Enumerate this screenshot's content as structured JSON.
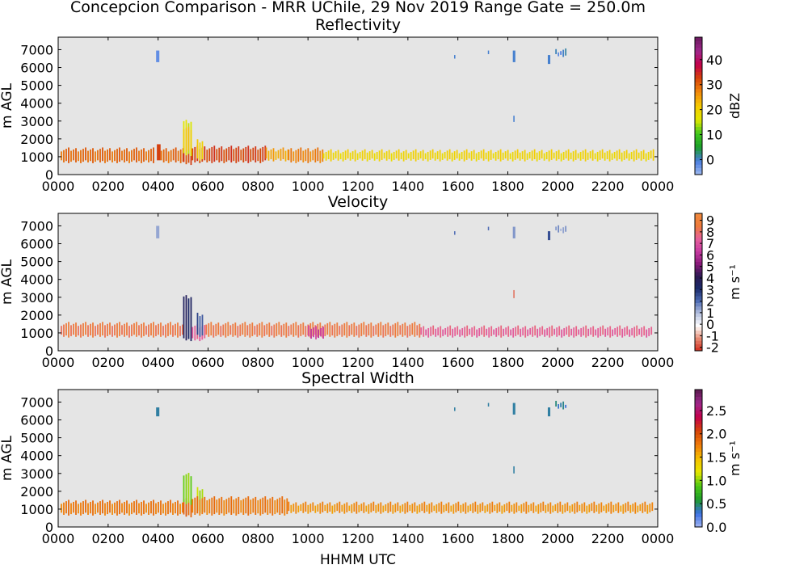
{
  "figure": {
    "suptitle": "Concepcion Comparison - MRR UChile, 29 Nov 2019 Range Gate = 250.0m",
    "xlabel": "HHMM UTC"
  },
  "colors": {
    "background": "#ffffff",
    "axes_face": "#e5e5e5",
    "reflectivity_cmap": [
      "#9db8ee",
      "#4a7de0",
      "#1a9e2a",
      "#3ec81c",
      "#e2e800",
      "#f5cb00",
      "#f28a0c",
      "#d64508",
      "#c4004a",
      "#a0288c",
      "#6a1a5e"
    ],
    "velocity_cmap": [
      "#d12a1c",
      "#e78c74",
      "#ffffff",
      "#b7c2e0",
      "#4e6cb4",
      "#1a2a6a",
      "#2d1a52",
      "#8a1a7a",
      "#c93ca2",
      "#e6609a",
      "#ee7a3c",
      "#f28a3c"
    ],
    "width_cmap": [
      "#a4b6f0",
      "#3a6fe4",
      "#1e9c2a",
      "#4cc814",
      "#e6e800",
      "#f5c000",
      "#ef7a0a",
      "#d64508",
      "#c4004a",
      "#a0288c",
      "#5a1a4e"
    ]
  },
  "chart_data": [
    {
      "type": "heatmap",
      "title": "Reflectivity",
      "ylabel": "m AGL",
      "x_tick_labels": [
        "0000",
        "0200",
        "0400",
        "0600",
        "0800",
        "1000",
        "1200",
        "1400",
        "1600",
        "1800",
        "2000",
        "2200",
        "0000"
      ],
      "xlim_hours": [
        0,
        24
      ],
      "y_ticks": [
        0,
        1000,
        2000,
        3000,
        4000,
        5000,
        6000,
        7000
      ],
      "ylim": [
        0,
        7700
      ],
      "colorbar": {
        "label": "dBZ",
        "range": [
          -6,
          49
        ],
        "ticks": [
          "0",
          "10",
          "20",
          "30",
          "40"
        ],
        "tick_values": [
          0,
          10,
          20,
          30,
          40
        ]
      },
      "segments": [
        {
          "t0": 0.1,
          "t1": 3.8,
          "h0": 800,
          "h1": 1400,
          "value": 30
        },
        {
          "t0": 3.95,
          "t1": 4.1,
          "h0": 800,
          "h1": 1700,
          "value": 33
        },
        {
          "t0": 4.1,
          "t1": 5.0,
          "h0": 800,
          "h1": 1400,
          "value": 30
        },
        {
          "t0": 5.0,
          "t1": 5.35,
          "h0": 700,
          "h1": 1500,
          "value": 33
        },
        {
          "t0": 5.35,
          "t1": 8.3,
          "h0": 800,
          "h1": 1500,
          "value": 33
        },
        {
          "t0": 8.3,
          "t1": 9.2,
          "h0": 900,
          "h1": 1400,
          "value": 25
        },
        {
          "t0": 9.2,
          "t1": 10.6,
          "h0": 800,
          "h1": 1400,
          "value": 28
        },
        {
          "t0": 10.6,
          "t1": 23.8,
          "h0": 900,
          "h1": 1300,
          "value": 20
        },
        {
          "t0": 5.0,
          "t1": 5.35,
          "h0": 1200,
          "h1": 2950,
          "value": 16
        },
        {
          "t0": 5.0,
          "t1": 5.35,
          "h0": 1400,
          "h1": 2600,
          "value": 22
        },
        {
          "t0": 5.55,
          "t1": 5.75,
          "h0": 900,
          "h1": 1900,
          "value": 21
        },
        {
          "t0": 3.92,
          "t1": 4.05,
          "h0": 6300,
          "h1": 6950,
          "value": -2
        },
        {
          "t0": 15.85,
          "t1": 15.9,
          "h0": 6500,
          "h1": 6700,
          "value": 0
        },
        {
          "t0": 17.2,
          "t1": 17.25,
          "h0": 6750,
          "h1": 6950,
          "value": 0
        },
        {
          "t0": 18.2,
          "t1": 18.3,
          "h0": 6300,
          "h1": 6950,
          "value": 0
        },
        {
          "t0": 18.22,
          "t1": 18.27,
          "h0": 2950,
          "h1": 3300,
          "value": 0
        },
        {
          "t0": 19.6,
          "t1": 19.7,
          "h0": 6200,
          "h1": 6700,
          "value": 0
        },
        {
          "t0": 19.9,
          "t1": 20.3,
          "h0": 6750,
          "h1": 6950,
          "value": 0
        }
      ]
    },
    {
      "type": "heatmap",
      "title": "Velocity",
      "ylabel": "m AGL",
      "x_tick_labels": [
        "0000",
        "0200",
        "0400",
        "0600",
        "0800",
        "1000",
        "1200",
        "1400",
        "1600",
        "1800",
        "2000",
        "2200",
        "0000"
      ],
      "xlim_hours": [
        0,
        24
      ],
      "y_ticks": [
        0,
        1000,
        2000,
        3000,
        4000,
        5000,
        6000,
        7000
      ],
      "ylim": [
        0,
        7700
      ],
      "colorbar": {
        "label": "m s⁻¹",
        "range": [
          -2.3,
          9.6
        ],
        "ticks": [
          "-2",
          "-1",
          "0",
          "1",
          "2",
          "3",
          "4",
          "5",
          "6",
          "7",
          "8",
          "9"
        ],
        "tick_values": [
          -2,
          -1,
          0,
          1,
          2,
          3,
          4,
          5,
          6,
          7,
          8,
          9
        ]
      },
      "segments": [
        {
          "t0": 0.1,
          "t1": 5.0,
          "h0": 900,
          "h1": 1500,
          "value": 8.5
        },
        {
          "t0": 5.0,
          "t1": 5.35,
          "h0": 700,
          "h1": 3000,
          "value": 3.5
        },
        {
          "t0": 5.35,
          "t1": 5.9,
          "h0": 700,
          "h1": 1400,
          "value": 7.5
        },
        {
          "t0": 5.55,
          "t1": 5.75,
          "h0": 900,
          "h1": 2050,
          "value": 2.5
        },
        {
          "t0": 5.9,
          "t1": 14.5,
          "h0": 900,
          "h1": 1500,
          "value": 8.5
        },
        {
          "t0": 10.0,
          "t1": 10.6,
          "h0": 800,
          "h1": 1300,
          "value": 6.5
        },
        {
          "t0": 14.5,
          "t1": 23.8,
          "h0": 900,
          "h1": 1300,
          "value": 7.5
        },
        {
          "t0": 3.92,
          "t1": 4.05,
          "h0": 6300,
          "h1": 7000,
          "value": 1.3
        },
        {
          "t0": 15.85,
          "t1": 15.9,
          "h0": 6500,
          "h1": 6700,
          "value": 2
        },
        {
          "t0": 17.2,
          "t1": 17.25,
          "h0": 6750,
          "h1": 6950,
          "value": 2
        },
        {
          "t0": 18.2,
          "t1": 18.3,
          "h0": 6300,
          "h1": 6950,
          "value": 1.5
        },
        {
          "t0": 18.22,
          "t1": 18.27,
          "h0": 2950,
          "h1": 3400,
          "value": -1.5
        },
        {
          "t0": 19.6,
          "t1": 19.7,
          "h0": 6200,
          "h1": 6700,
          "value": 2.5
        },
        {
          "t0": 19.9,
          "t1": 20.3,
          "h0": 6750,
          "h1": 6950,
          "value": 1.5
        }
      ]
    },
    {
      "type": "heatmap",
      "title": "Spectral Width",
      "ylabel": "m AGL",
      "x_tick_labels": [
        "0000",
        "0200",
        "0400",
        "0600",
        "0800",
        "1000",
        "1200",
        "1400",
        "1600",
        "1800",
        "2000",
        "2200",
        "0000"
      ],
      "xlim_hours": [
        0,
        24
      ],
      "y_ticks": [
        0,
        1000,
        2000,
        3000,
        4000,
        5000,
        6000,
        7000
      ],
      "ylim": [
        0,
        7700
      ],
      "colorbar": {
        "label": "m s⁻¹",
        "range": [
          0,
          2.95
        ],
        "ticks": [
          "0.0",
          "0.5",
          "1.0",
          "1.5",
          "2.0",
          "2.5"
        ],
        "tick_values": [
          0,
          0.5,
          1,
          1.5,
          2,
          2.5
        ]
      },
      "segments": [
        {
          "t0": 0.1,
          "t1": 5.0,
          "h0": 800,
          "h1": 1400,
          "value": 1.8
        },
        {
          "t0": 5.0,
          "t1": 5.35,
          "h0": 700,
          "h1": 1500,
          "value": 1.9
        },
        {
          "t0": 5.0,
          "t1": 5.35,
          "h0": 1400,
          "h1": 2950,
          "value": 1.0
        },
        {
          "t0": 5.55,
          "t1": 5.75,
          "h0": 900,
          "h1": 2150,
          "value": 1.1
        },
        {
          "t0": 5.35,
          "t1": 9.2,
          "h0": 800,
          "h1": 1600,
          "value": 1.8
        },
        {
          "t0": 9.2,
          "t1": 23.8,
          "h0": 900,
          "h1": 1300,
          "value": 1.7
        },
        {
          "t0": 3.92,
          "t1": 4.05,
          "h0": 6200,
          "h1": 6700,
          "value": 0.4
        },
        {
          "t0": 15.85,
          "t1": 15.9,
          "h0": 6500,
          "h1": 6700,
          "value": 0.4
        },
        {
          "t0": 17.2,
          "t1": 17.25,
          "h0": 6750,
          "h1": 6950,
          "value": 0.4
        },
        {
          "t0": 18.2,
          "t1": 18.3,
          "h0": 6300,
          "h1": 6950,
          "value": 0.4
        },
        {
          "t0": 18.22,
          "t1": 18.27,
          "h0": 3000,
          "h1": 3400,
          "value": 0.4
        },
        {
          "t0": 19.6,
          "t1": 19.7,
          "h0": 6200,
          "h1": 6700,
          "value": 0.4
        },
        {
          "t0": 19.9,
          "t1": 20.3,
          "h0": 6750,
          "h1": 6950,
          "value": 0.4
        }
      ]
    }
  ]
}
